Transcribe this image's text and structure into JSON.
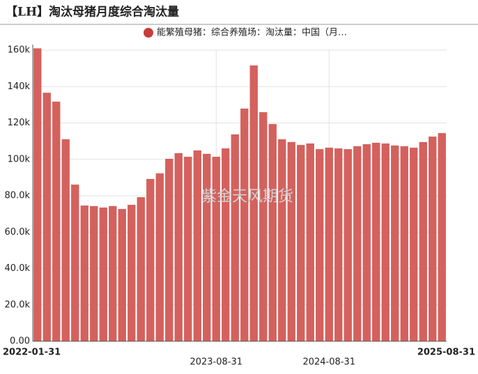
{
  "chart_data": {
    "type": "bar",
    "title": "【LH】淘汰母猪月度综合淘汰量",
    "watermark": "紫金天风期货",
    "categories": [
      "2022-01-31",
      null,
      null,
      null,
      null,
      null,
      null,
      null,
      null,
      null,
      null,
      null,
      null,
      null,
      null,
      null,
      null,
      null,
      null,
      "2023-08-31",
      null,
      null,
      null,
      null,
      null,
      null,
      null,
      null,
      null,
      null,
      null,
      "2024-08-31",
      null,
      null,
      null,
      null,
      null,
      null,
      null,
      null,
      null,
      null,
      null,
      "2025-08-31"
    ],
    "series": [
      {
        "name": "能繁殖母猪：综合养殖场：淘汰量：中国（月…",
        "color": "#d4615d",
        "values": [
          161000,
          136600,
          131700,
          111000,
          86100,
          74600,
          74300,
          73500,
          74300,
          72700,
          75000,
          79200,
          89200,
          92300,
          100300,
          103400,
          101400,
          104900,
          103000,
          101400,
          106000,
          113700,
          127900,
          151600,
          125900,
          119400,
          111000,
          109500,
          107900,
          108700,
          105600,
          106400,
          106000,
          105600,
          107200,
          108300,
          109100,
          108700,
          107600,
          107200,
          106400,
          109500,
          112500,
          114400
        ]
      }
    ],
    "ylim": [
      0,
      160000
    ],
    "yticks": [
      {
        "value": 0,
        "label": "0.00"
      },
      {
        "value": 20000,
        "label": "20.0k"
      },
      {
        "value": 40000,
        "label": "40.0k"
      },
      {
        "value": 60000,
        "label": "60.0k"
      },
      {
        "value": 80000,
        "label": "80.0k"
      },
      {
        "value": 100000,
        "label": "100k"
      },
      {
        "value": 120000,
        "label": "120k"
      },
      {
        "value": 140000,
        "label": "140k"
      },
      {
        "value": 160000,
        "label": "160k"
      }
    ],
    "grid": true
  }
}
